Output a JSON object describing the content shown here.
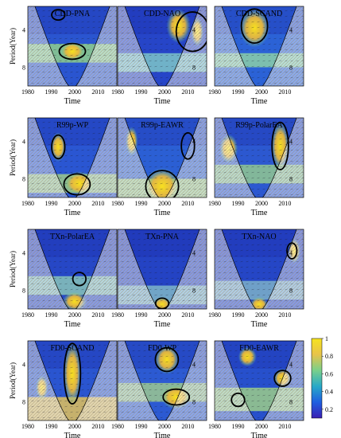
{
  "chart_data": {
    "type": "heatmap",
    "subtype": "wavelet coherence grid",
    "layout": {
      "rows": 4,
      "cols": 3
    },
    "xlabel": "Time",
    "ylabel": "Period(Year)",
    "xlim": [
      1980,
      2018
    ],
    "xticks": [
      1980,
      1990,
      2000,
      2010
    ],
    "yticks": [
      4,
      8
    ],
    "ylim": [
      1.5,
      10
    ],
    "y_inverted": true,
    "grid": false,
    "colorbar": {
      "ticks": [
        1,
        0.8,
        0.6,
        0.4,
        0.2
      ],
      "range": [
        0.1,
        1
      ],
      "colors": [
        "#3a1fb3",
        "#1f5fe0",
        "#27a9c8",
        "#7ad08a",
        "#e8c34a",
        "#f6e31f"
      ],
      "placement": "right-bottom"
    },
    "panels": [
      {
        "title": "CDD-PNA",
        "bg": "#2a55d0",
        "bands": [
          [
            5.5,
            7.5,
            "#8fd08c"
          ]
        ],
        "hot": [
          [
            1999,
            6.3,
            4,
            0.8
          ]
        ],
        "sig": [
          [
            1999,
            6.3,
            4,
            0.6
          ],
          [
            1993,
            2.4,
            2,
            0.4
          ]
        ]
      },
      {
        "title": "CDD-NAO",
        "bg": "#2645c8",
        "bands": [
          [
            6.5,
            8.5,
            "#7ec6c8"
          ]
        ],
        "hot": [
          [
            2006,
            3.6,
            4,
            1.4
          ],
          [
            2014,
            4.2,
            2,
            1.2
          ]
        ],
        "sig": [
          [
            2012,
            4.2,
            5,
            1.5
          ]
        ]
      },
      {
        "title": "CDD-SCAND",
        "bg": "#2b62d6",
        "bands": [
          [
            6.5,
            8,
            "#8cd0a8"
          ]
        ],
        "hot": [
          [
            1997,
            3.8,
            5,
            1.6
          ]
        ],
        "sig": [
          [
            1997,
            3.6,
            4,
            1.3
          ]
        ]
      },
      {
        "title": "R99p-WP",
        "bg": "#2a56d2",
        "bands": [
          [
            7.5,
            9.5,
            "#9ec98a"
          ]
        ],
        "hot": [
          [
            1993,
            4.6,
            2.5,
            1.2
          ],
          [
            2002,
            8.5,
            5,
            1
          ]
        ],
        "sig": [
          [
            1993,
            4.6,
            2,
            0.9
          ],
          [
            2001,
            8.6,
            4,
            0.8
          ]
        ]
      },
      {
        "title": "R99p-EAWR",
        "bg": "#2b5fd4",
        "bands": [
          [
            8,
            10,
            "#a6cf86"
          ]
        ],
        "hot": [
          [
            1999,
            8.8,
            6,
            1.5
          ],
          [
            1986,
            4,
            2,
            1.2
          ]
        ],
        "sig": [
          [
            1999,
            8.8,
            5,
            1.2
          ],
          [
            2010,
            4.5,
            2,
            1
          ]
        ]
      },
      {
        "title": "R99p-PolarEA",
        "bg": "#2c58d0",
        "bands": [
          [
            6.5,
            8.5,
            "#92c890"
          ]
        ],
        "hot": [
          [
            2008,
            4.5,
            3,
            2
          ],
          [
            1986,
            4.8,
            3,
            1.2
          ]
        ],
        "sig": [
          [
            2008,
            4.5,
            2.5,
            1.8
          ]
        ]
      },
      {
        "title": "TXn-PolarEA",
        "bg": "#2647c6",
        "bands": [
          [
            6.5,
            8.5,
            "#88c4b8"
          ]
        ],
        "hot": [
          [
            2000,
            9.2,
            4,
            0.8
          ]
        ],
        "sig": [
          [
            2002,
            6.8,
            2,
            0.5
          ]
        ]
      },
      {
        "title": "TXn-PNA",
        "bg": "#2443c4",
        "bands": [
          [
            7.5,
            9.5,
            "#7fb6c8"
          ]
        ],
        "hot": [
          [
            1999,
            9.5,
            3,
            0.6
          ]
        ],
        "sig": [
          [
            1999,
            9.4,
            2,
            0.4
          ]
        ]
      },
      {
        "title": "TXn-NAO",
        "bg": "#2546c6",
        "bands": [
          [
            7,
            9,
            "#7cb0c8"
          ]
        ],
        "hot": [
          [
            2014,
            3.8,
            2,
            1
          ],
          [
            1999,
            9.5,
            3,
            0.6
          ]
        ],
        "sig": [
          [
            2013,
            3.8,
            1.5,
            0.6
          ]
        ]
      },
      {
        "title": "FD0-SCAND",
        "bg": "#2a55d0",
        "bands": [
          [
            7.5,
            10,
            "#e2c25a"
          ]
        ],
        "hot": [
          [
            1999,
            5,
            3,
            2.6
          ],
          [
            1986,
            6.5,
            2,
            1
          ]
        ],
        "sig": [
          [
            1999,
            5,
            2.5,
            2.3
          ]
        ]
      },
      {
        "title": "FD0-WP",
        "bg": "#2c5ad2",
        "bands": [
          [
            6,
            8,
            "#9cc890"
          ]
        ],
        "hot": [
          [
            2001,
            3.5,
            4,
            1.2
          ],
          [
            2005,
            7.5,
            5,
            1
          ]
        ],
        "sig": [
          [
            2001,
            3.5,
            3.5,
            0.9
          ],
          [
            2005,
            7.5,
            4,
            0.6
          ]
        ]
      },
      {
        "title": "FD0-EAWR",
        "bg": "#2750cc",
        "bands": [
          [
            6.5,
            9,
            "#9ccd88"
          ]
        ],
        "hot": [
          [
            2009,
            5.5,
            3,
            0.8
          ],
          [
            1994,
            3.2,
            3,
            0.8
          ]
        ],
        "sig": [
          [
            2009,
            5.5,
            2.5,
            0.6
          ],
          [
            1990,
            7.8,
            2,
            0.5
          ]
        ]
      }
    ]
  }
}
